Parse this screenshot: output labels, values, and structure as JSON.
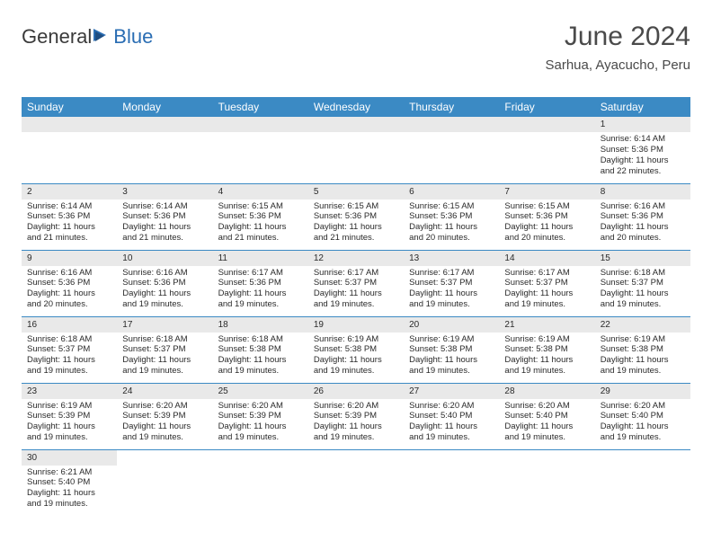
{
  "brand": {
    "part1": "General",
    "part2": "Blue",
    "text_color": "#3a3a3a",
    "accent_color": "#2a6db3"
  },
  "header": {
    "title": "June 2024",
    "location": "Sarhua, Ayacucho, Peru"
  },
  "colors": {
    "header_bg": "#3b8ac4",
    "header_text": "#ffffff",
    "daynum_bg": "#e9e9e9",
    "cell_border": "#3b8ac4",
    "body_text": "#2a2a2a",
    "page_bg": "#ffffff"
  },
  "dayHeaders": [
    "Sunday",
    "Monday",
    "Tuesday",
    "Wednesday",
    "Thursday",
    "Friday",
    "Saturday"
  ],
  "weeks": [
    [
      null,
      null,
      null,
      null,
      null,
      null,
      {
        "n": "1",
        "sunrise": "Sunrise: 6:14 AM",
        "sunset": "Sunset: 5:36 PM",
        "daylight": "Daylight: 11 hours and 22 minutes."
      }
    ],
    [
      {
        "n": "2",
        "sunrise": "Sunrise: 6:14 AM",
        "sunset": "Sunset: 5:36 PM",
        "daylight": "Daylight: 11 hours and 21 minutes."
      },
      {
        "n": "3",
        "sunrise": "Sunrise: 6:14 AM",
        "sunset": "Sunset: 5:36 PM",
        "daylight": "Daylight: 11 hours and 21 minutes."
      },
      {
        "n": "4",
        "sunrise": "Sunrise: 6:15 AM",
        "sunset": "Sunset: 5:36 PM",
        "daylight": "Daylight: 11 hours and 21 minutes."
      },
      {
        "n": "5",
        "sunrise": "Sunrise: 6:15 AM",
        "sunset": "Sunset: 5:36 PM",
        "daylight": "Daylight: 11 hours and 21 minutes."
      },
      {
        "n": "6",
        "sunrise": "Sunrise: 6:15 AM",
        "sunset": "Sunset: 5:36 PM",
        "daylight": "Daylight: 11 hours and 20 minutes."
      },
      {
        "n": "7",
        "sunrise": "Sunrise: 6:15 AM",
        "sunset": "Sunset: 5:36 PM",
        "daylight": "Daylight: 11 hours and 20 minutes."
      },
      {
        "n": "8",
        "sunrise": "Sunrise: 6:16 AM",
        "sunset": "Sunset: 5:36 PM",
        "daylight": "Daylight: 11 hours and 20 minutes."
      }
    ],
    [
      {
        "n": "9",
        "sunrise": "Sunrise: 6:16 AM",
        "sunset": "Sunset: 5:36 PM",
        "daylight": "Daylight: 11 hours and 20 minutes."
      },
      {
        "n": "10",
        "sunrise": "Sunrise: 6:16 AM",
        "sunset": "Sunset: 5:36 PM",
        "daylight": "Daylight: 11 hours and 19 minutes."
      },
      {
        "n": "11",
        "sunrise": "Sunrise: 6:17 AM",
        "sunset": "Sunset: 5:36 PM",
        "daylight": "Daylight: 11 hours and 19 minutes."
      },
      {
        "n": "12",
        "sunrise": "Sunrise: 6:17 AM",
        "sunset": "Sunset: 5:37 PM",
        "daylight": "Daylight: 11 hours and 19 minutes."
      },
      {
        "n": "13",
        "sunrise": "Sunrise: 6:17 AM",
        "sunset": "Sunset: 5:37 PM",
        "daylight": "Daylight: 11 hours and 19 minutes."
      },
      {
        "n": "14",
        "sunrise": "Sunrise: 6:17 AM",
        "sunset": "Sunset: 5:37 PM",
        "daylight": "Daylight: 11 hours and 19 minutes."
      },
      {
        "n": "15",
        "sunrise": "Sunrise: 6:18 AM",
        "sunset": "Sunset: 5:37 PM",
        "daylight": "Daylight: 11 hours and 19 minutes."
      }
    ],
    [
      {
        "n": "16",
        "sunrise": "Sunrise: 6:18 AM",
        "sunset": "Sunset: 5:37 PM",
        "daylight": "Daylight: 11 hours and 19 minutes."
      },
      {
        "n": "17",
        "sunrise": "Sunrise: 6:18 AM",
        "sunset": "Sunset: 5:37 PM",
        "daylight": "Daylight: 11 hours and 19 minutes."
      },
      {
        "n": "18",
        "sunrise": "Sunrise: 6:18 AM",
        "sunset": "Sunset: 5:38 PM",
        "daylight": "Daylight: 11 hours and 19 minutes."
      },
      {
        "n": "19",
        "sunrise": "Sunrise: 6:19 AM",
        "sunset": "Sunset: 5:38 PM",
        "daylight": "Daylight: 11 hours and 19 minutes."
      },
      {
        "n": "20",
        "sunrise": "Sunrise: 6:19 AM",
        "sunset": "Sunset: 5:38 PM",
        "daylight": "Daylight: 11 hours and 19 minutes."
      },
      {
        "n": "21",
        "sunrise": "Sunrise: 6:19 AM",
        "sunset": "Sunset: 5:38 PM",
        "daylight": "Daylight: 11 hours and 19 minutes."
      },
      {
        "n": "22",
        "sunrise": "Sunrise: 6:19 AM",
        "sunset": "Sunset: 5:38 PM",
        "daylight": "Daylight: 11 hours and 19 minutes."
      }
    ],
    [
      {
        "n": "23",
        "sunrise": "Sunrise: 6:19 AM",
        "sunset": "Sunset: 5:39 PM",
        "daylight": "Daylight: 11 hours and 19 minutes."
      },
      {
        "n": "24",
        "sunrise": "Sunrise: 6:20 AM",
        "sunset": "Sunset: 5:39 PM",
        "daylight": "Daylight: 11 hours and 19 minutes."
      },
      {
        "n": "25",
        "sunrise": "Sunrise: 6:20 AM",
        "sunset": "Sunset: 5:39 PM",
        "daylight": "Daylight: 11 hours and 19 minutes."
      },
      {
        "n": "26",
        "sunrise": "Sunrise: 6:20 AM",
        "sunset": "Sunset: 5:39 PM",
        "daylight": "Daylight: 11 hours and 19 minutes."
      },
      {
        "n": "27",
        "sunrise": "Sunrise: 6:20 AM",
        "sunset": "Sunset: 5:40 PM",
        "daylight": "Daylight: 11 hours and 19 minutes."
      },
      {
        "n": "28",
        "sunrise": "Sunrise: 6:20 AM",
        "sunset": "Sunset: 5:40 PM",
        "daylight": "Daylight: 11 hours and 19 minutes."
      },
      {
        "n": "29",
        "sunrise": "Sunrise: 6:20 AM",
        "sunset": "Sunset: 5:40 PM",
        "daylight": "Daylight: 11 hours and 19 minutes."
      }
    ],
    [
      {
        "n": "30",
        "sunrise": "Sunrise: 6:21 AM",
        "sunset": "Sunset: 5:40 PM",
        "daylight": "Daylight: 11 hours and 19 minutes."
      },
      null,
      null,
      null,
      null,
      null,
      null
    ]
  ]
}
